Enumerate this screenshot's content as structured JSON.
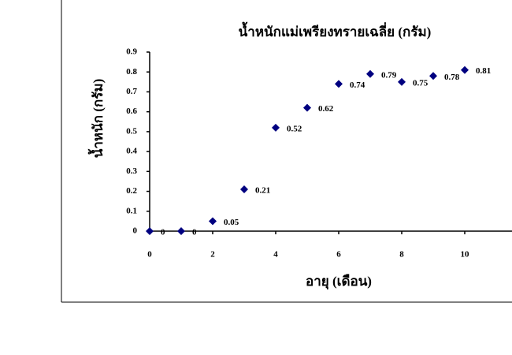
{
  "chart_data": {
    "type": "scatter",
    "title": "น้ำหนักแม่เพรียงทรายเฉลี่ย (กรัม)",
    "x_label": "อายุ  (เดือน)",
    "y_label": "น้ำหนัก  (กรัม)",
    "x": [
      0,
      1,
      2,
      3,
      4,
      5,
      6,
      7,
      8,
      9,
      10
    ],
    "values": [
      0,
      0,
      0.05,
      0.21,
      0.52,
      0.62,
      0.74,
      0.79,
      0.75,
      0.78,
      0.81
    ],
    "color": "#000080",
    "xlim": [
      0,
      11.5
    ],
    "xticks": [
      0,
      2,
      4,
      6,
      8,
      10
    ],
    "ylim": [
      0,
      0.9
    ],
    "yticks": [
      0,
      0.1,
      0.2,
      0.3,
      0.4,
      0.5,
      0.6,
      0.7,
      0.8,
      0.9
    ]
  }
}
